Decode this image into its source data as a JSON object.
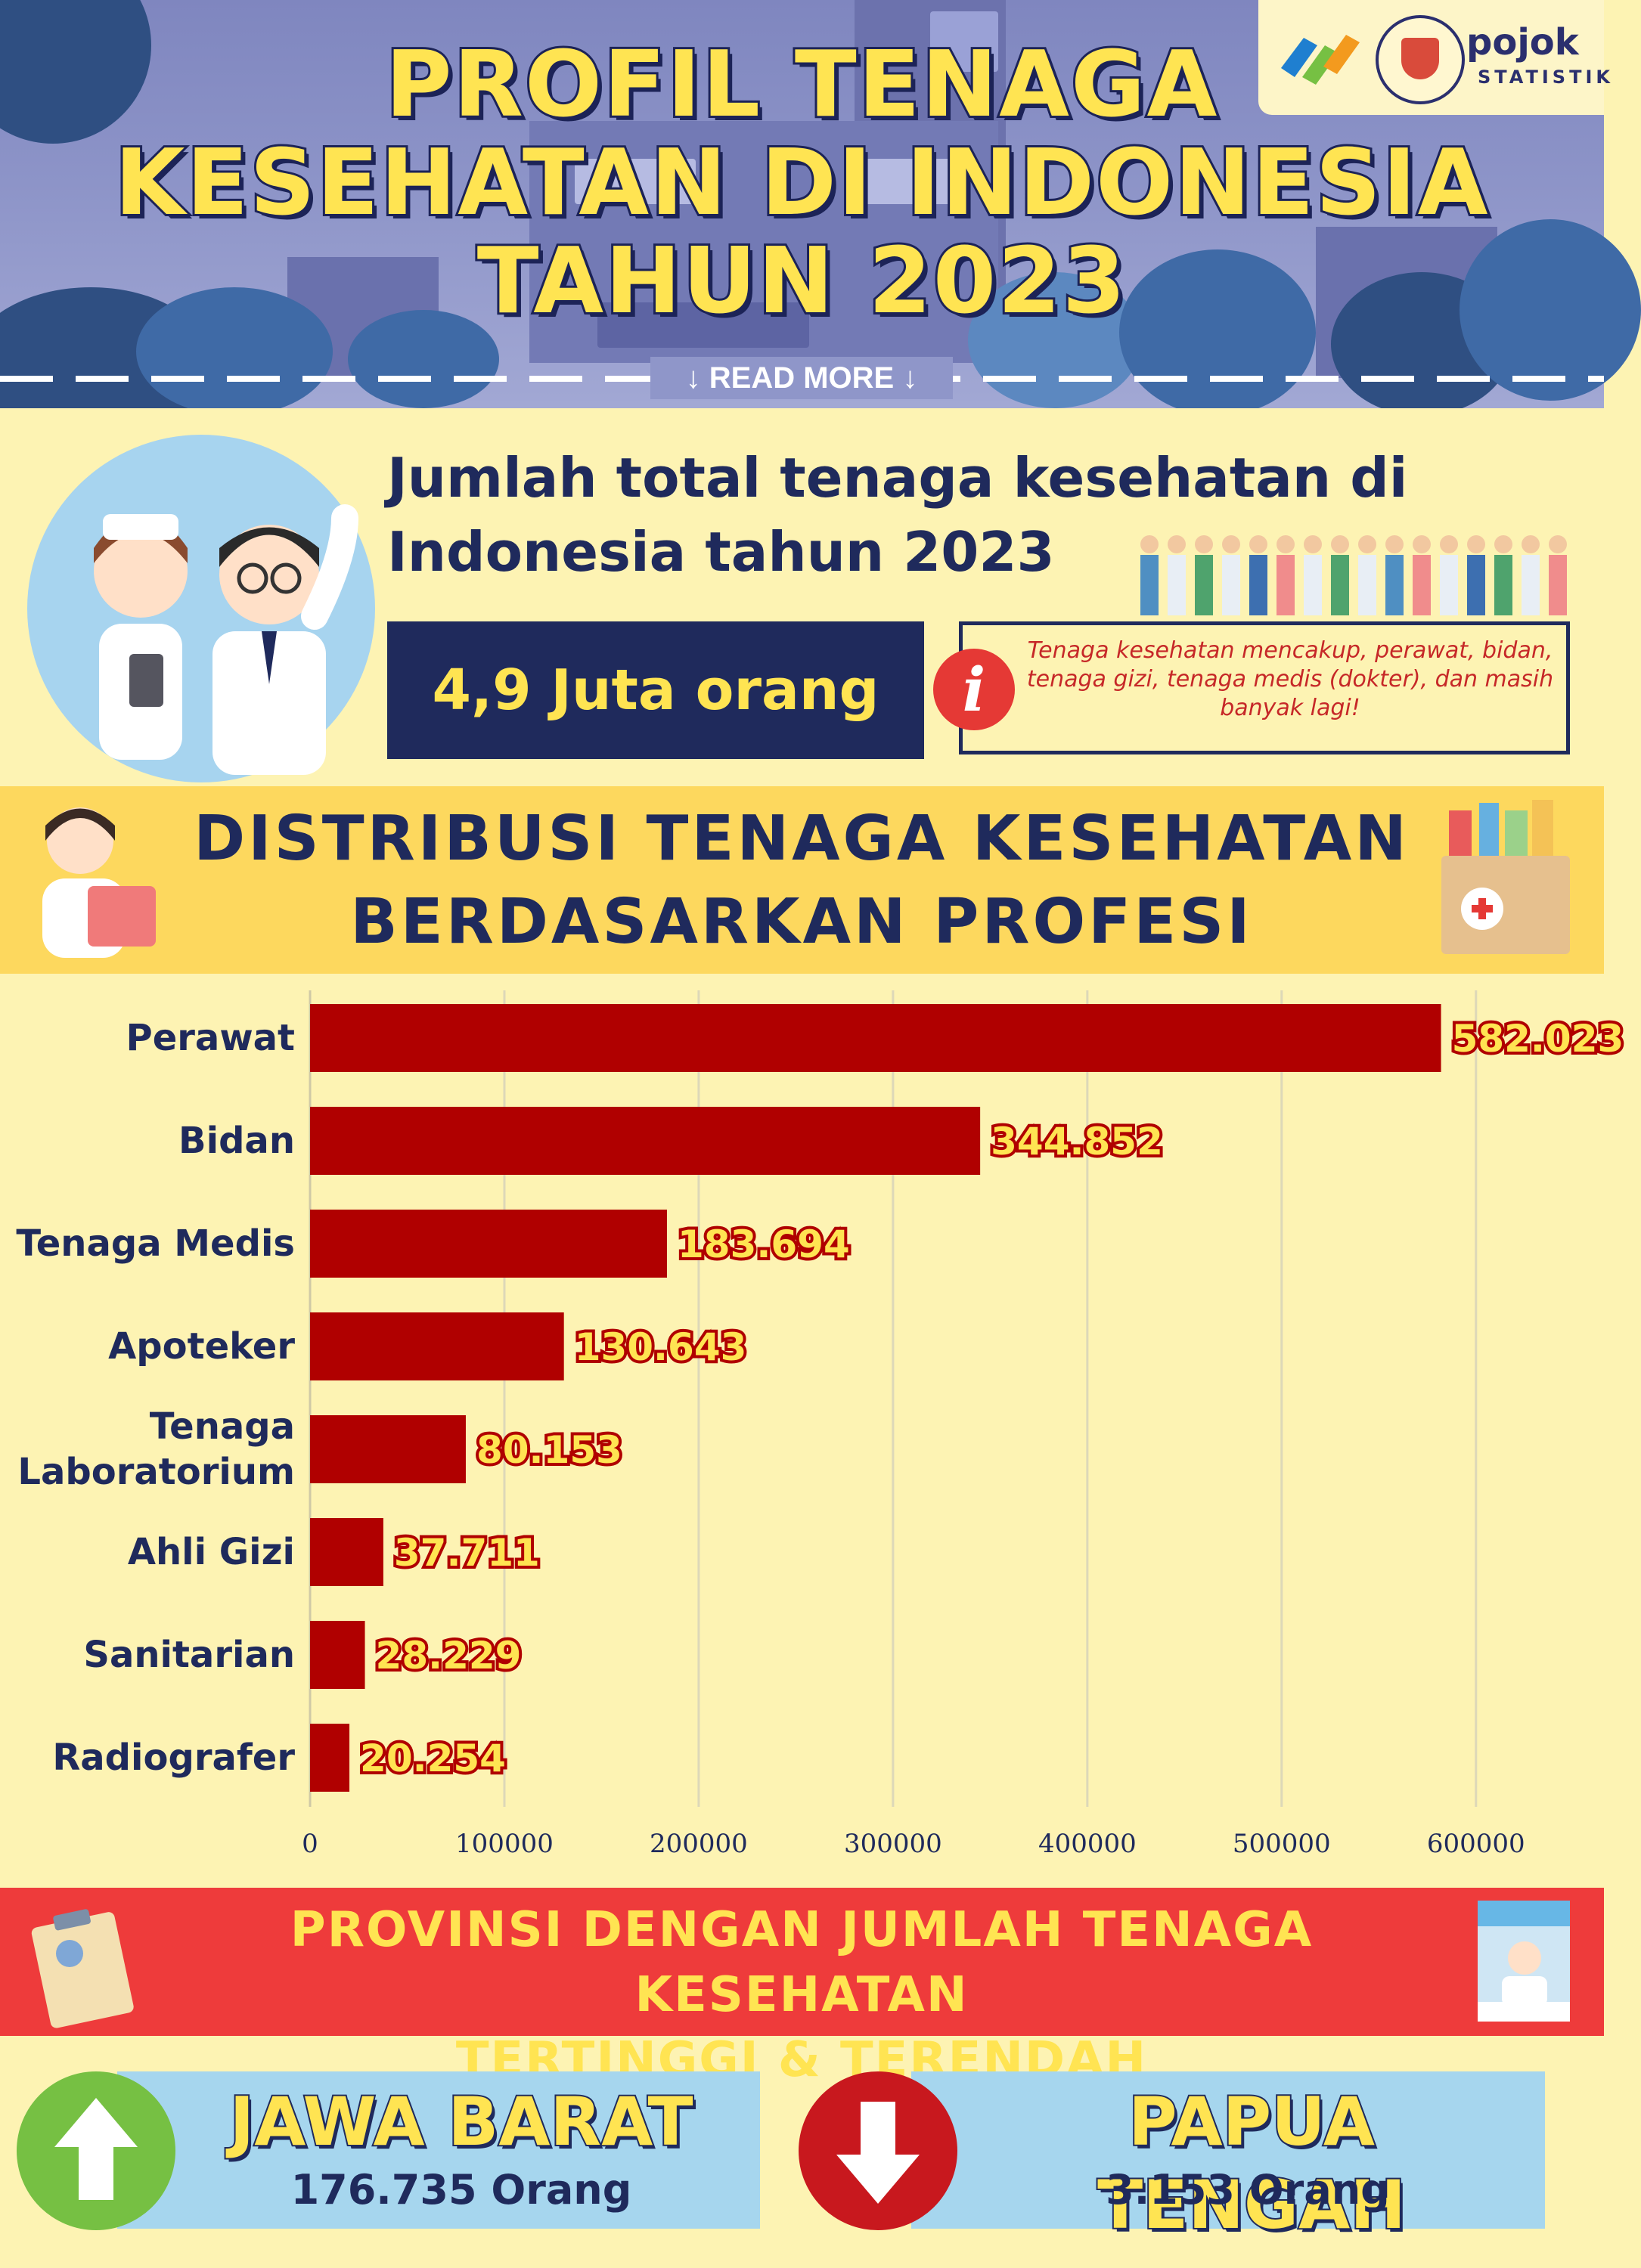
{
  "header": {
    "title_lines": [
      "PROFIL TENAGA",
      "KESEHATAN DI INDONESIA",
      "TAHUN 2023"
    ],
    "read_more": "↓ READ MORE ↓",
    "brand": {
      "name": "pojok",
      "sub": "STATISTIK"
    }
  },
  "total": {
    "heading": "Jumlah total tenaga kesehatan di Indonesia tahun 2023",
    "value": "4,9 Juta orang",
    "info_icon": "i",
    "info_text": "Tenaga kesehatan mencakup, perawat, bidan, tenaga gizi, tenaga medis (dokter), dan masih banyak lagi!"
  },
  "distribution": {
    "title_lines": [
      "DISTRIBUSI TENAGA KESEHATAN",
      "BERDASARKAN PROFESI"
    ]
  },
  "chart_data": {
    "type": "bar",
    "orientation": "horizontal",
    "categories": [
      [
        "Perawat"
      ],
      [
        "Bidan"
      ],
      [
        "Tenaga Medis"
      ],
      [
        "Apoteker"
      ],
      [
        "Tenaga",
        "Laboratorium"
      ],
      [
        "Ahli Gizi"
      ],
      [
        "Sanitarian"
      ],
      [
        "Radiografer"
      ]
    ],
    "values": [
      582023,
      344852,
      183694,
      130643,
      80153,
      37711,
      28229,
      20254
    ],
    "value_labels": [
      "582.023",
      "344.852",
      "183.694",
      "130.643",
      "80.153",
      "37.711",
      "28.229",
      "20.254"
    ],
    "xticks": [
      0,
      100000,
      200000,
      300000,
      400000,
      500000,
      600000
    ],
    "xlim": [
      0,
      625000
    ],
    "grid": true,
    "bar_color": "#b00000"
  },
  "provinces": {
    "title_lines": [
      "PROVINSI DENGAN JUMLAH TENAGA KESEHATAN",
      "TERTINGGI & TERENDAH"
    ],
    "highest": {
      "name": "JAWA BARAT",
      "count": "176.735 Orang"
    },
    "lowest": {
      "name": "PAPUA TENGAH",
      "count": "3.153 Orang"
    }
  },
  "colors": {
    "navy": "#1f2a5c",
    "yellow": "#ffe452",
    "red_band": "#ee3b3b",
    "bar": "#b00000",
    "up_green": "#76c043",
    "down_red": "#c8181e"
  }
}
